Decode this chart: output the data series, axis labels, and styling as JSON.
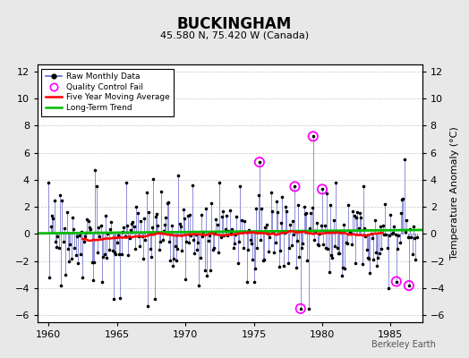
{
  "title": "BUCKINGHAM",
  "subtitle": "45.580 N, 75.420 W (Canada)",
  "ylabel": "Temperature Anomaly (°C)",
  "watermark": "Berkeley Earth",
  "xlim": [
    1959.2,
    1987.3
  ],
  "ylim": [
    -6.5,
    12.5
  ],
  "yticks": [
    -6,
    -4,
    -2,
    0,
    2,
    4,
    6,
    8,
    10,
    12
  ],
  "xticks": [
    1960,
    1965,
    1970,
    1975,
    1980,
    1985
  ],
  "bg_color": "#e8e8e8",
  "plot_bg_color": "#ffffff",
  "raw_line_color": "#6666cc",
  "dot_color": "#000000",
  "qc_color": "#ff00ff",
  "moving_avg_color": "#ff0000",
  "trend_color": "#00bb00",
  "qc_points": [
    [
      1975.417,
      5.3
    ],
    [
      1978.0,
      3.5
    ],
    [
      1978.417,
      -5.5
    ],
    [
      1979.333,
      7.2
    ],
    [
      1980.0,
      3.3
    ],
    [
      1985.417,
      -3.5
    ],
    [
      1986.333,
      -3.8
    ]
  ],
  "trend_endpoints": [
    [
      1959.2,
      0.05
    ],
    [
      1987.3,
      0.3
    ]
  ]
}
